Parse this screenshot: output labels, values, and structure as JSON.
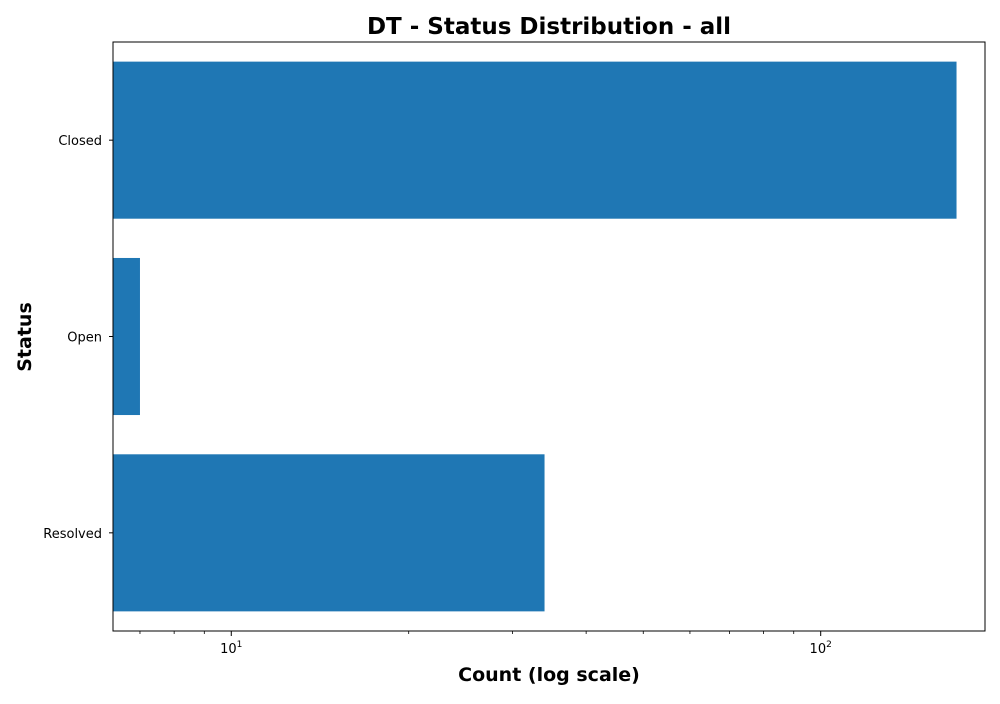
{
  "chart_data": {
    "type": "bar",
    "orientation": "horizontal",
    "title": "DT - Status Distribution - all",
    "xlabel": "Count (log scale)",
    "ylabel": "Status",
    "x_scale": "log",
    "xlim": [
      6.3,
      190
    ],
    "x_ticks": [
      {
        "value": 10,
        "base": "10",
        "exp": "1"
      },
      {
        "value": 100,
        "base": "10",
        "exp": "2"
      }
    ],
    "categories": [
      "Closed",
      "Open",
      "Resolved"
    ],
    "values": [
      170,
      7,
      34
    ],
    "bar_color": "#1f77b4",
    "grid": false,
    "legend": "none"
  }
}
